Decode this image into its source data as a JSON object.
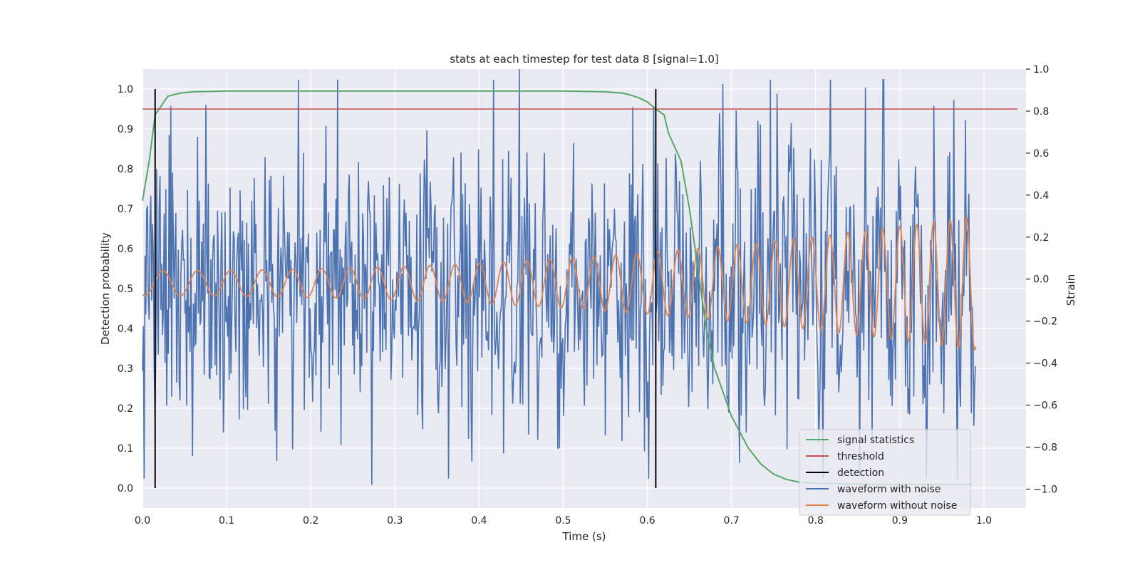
{
  "chart_data": {
    "type": "line",
    "title": "stats at each timestep for test data 8 [signal=1.0]",
    "xlabel": "Time (s)",
    "ylabel": "Detection probability",
    "y2label": "Strain",
    "xlim": [
      0.0,
      1.05
    ],
    "ylim": [
      -0.05,
      1.05
    ],
    "y2lim": [
      -1.09,
      1.0
    ],
    "xticks": [
      "0.0",
      "0.1",
      "0.2",
      "0.3",
      "0.4",
      "0.5",
      "0.6",
      "0.7",
      "0.8",
      "0.9",
      "1.0"
    ],
    "yticks": [
      "0.0",
      "0.1",
      "0.2",
      "0.3",
      "0.4",
      "0.5",
      "0.6",
      "0.7",
      "0.8",
      "0.9",
      "1.0"
    ],
    "y2ticks": [
      "−1.0",
      "−0.8",
      "−0.6",
      "−0.4",
      "−0.2",
      "0.0",
      "0.2",
      "0.4",
      "0.6",
      "0.8",
      "1.0"
    ],
    "grid": true,
    "legend_position": "lower-right",
    "colors": {
      "background": "#eaeaf2",
      "grid": "#ffffff",
      "signal": "#55a868",
      "threshold": "#c44e52",
      "detection": "#000000",
      "noisy": "#4c72b0",
      "clean": "#dd8452"
    },
    "series": [
      {
        "name": "signal statistics",
        "axis": "left",
        "x": [
          0.0,
          0.008,
          0.015,
          0.03,
          0.045,
          0.06,
          0.08,
          0.1,
          0.15,
          0.2,
          0.3,
          0.4,
          0.5,
          0.55,
          0.57,
          0.58,
          0.59,
          0.6,
          0.61,
          0.62,
          0.625,
          0.64,
          0.65,
          0.66,
          0.67,
          0.68,
          0.7,
          0.72,
          0.735,
          0.75,
          0.765,
          0.78,
          0.8,
          0.85,
          0.9,
          0.95,
          0.985
        ],
        "y": [
          0.72,
          0.82,
          0.935,
          0.982,
          0.99,
          0.993,
          0.994,
          0.995,
          0.995,
          0.995,
          0.995,
          0.995,
          0.995,
          0.993,
          0.99,
          0.985,
          0.978,
          0.968,
          0.95,
          0.935,
          0.89,
          0.82,
          0.7,
          0.55,
          0.4,
          0.3,
          0.18,
          0.1,
          0.06,
          0.035,
          0.022,
          0.015,
          0.012,
          0.01,
          0.009,
          0.009,
          0.009
        ]
      },
      {
        "name": "threshold",
        "axis": "left",
        "x": [
          0.0,
          1.04
        ],
        "y": [
          0.95,
          0.95
        ]
      },
      {
        "name": "detection",
        "axis": "left",
        "vlines": [
          0.015,
          0.61
        ],
        "ymin": 0.0,
        "ymax": 1.0
      },
      {
        "name": "waveform with noise",
        "axis": "right",
        "x_start": 0.0,
        "x_end": 0.99,
        "samples": 1000,
        "y_range": [
          -1.0,
          1.0
        ],
        "peaks": [
          [
            0.075,
            0.83
          ],
          [
            0.448,
            1.0
          ],
          [
            0.69,
            0.93
          ]
        ],
        "troughs": [
          [
            0.273,
            -0.98
          ],
          [
            0.391,
            -0.87
          ],
          [
            0.178,
            -0.81
          ]
        ]
      },
      {
        "name": "waveform without noise",
        "axis": "right",
        "x": [
          0.0,
          0.99
        ],
        "amplitude_start": 0.06,
        "amplitude_end": 0.32,
        "frequency_start_hz": 23,
        "frequency_end_hz": 52
      }
    ]
  }
}
